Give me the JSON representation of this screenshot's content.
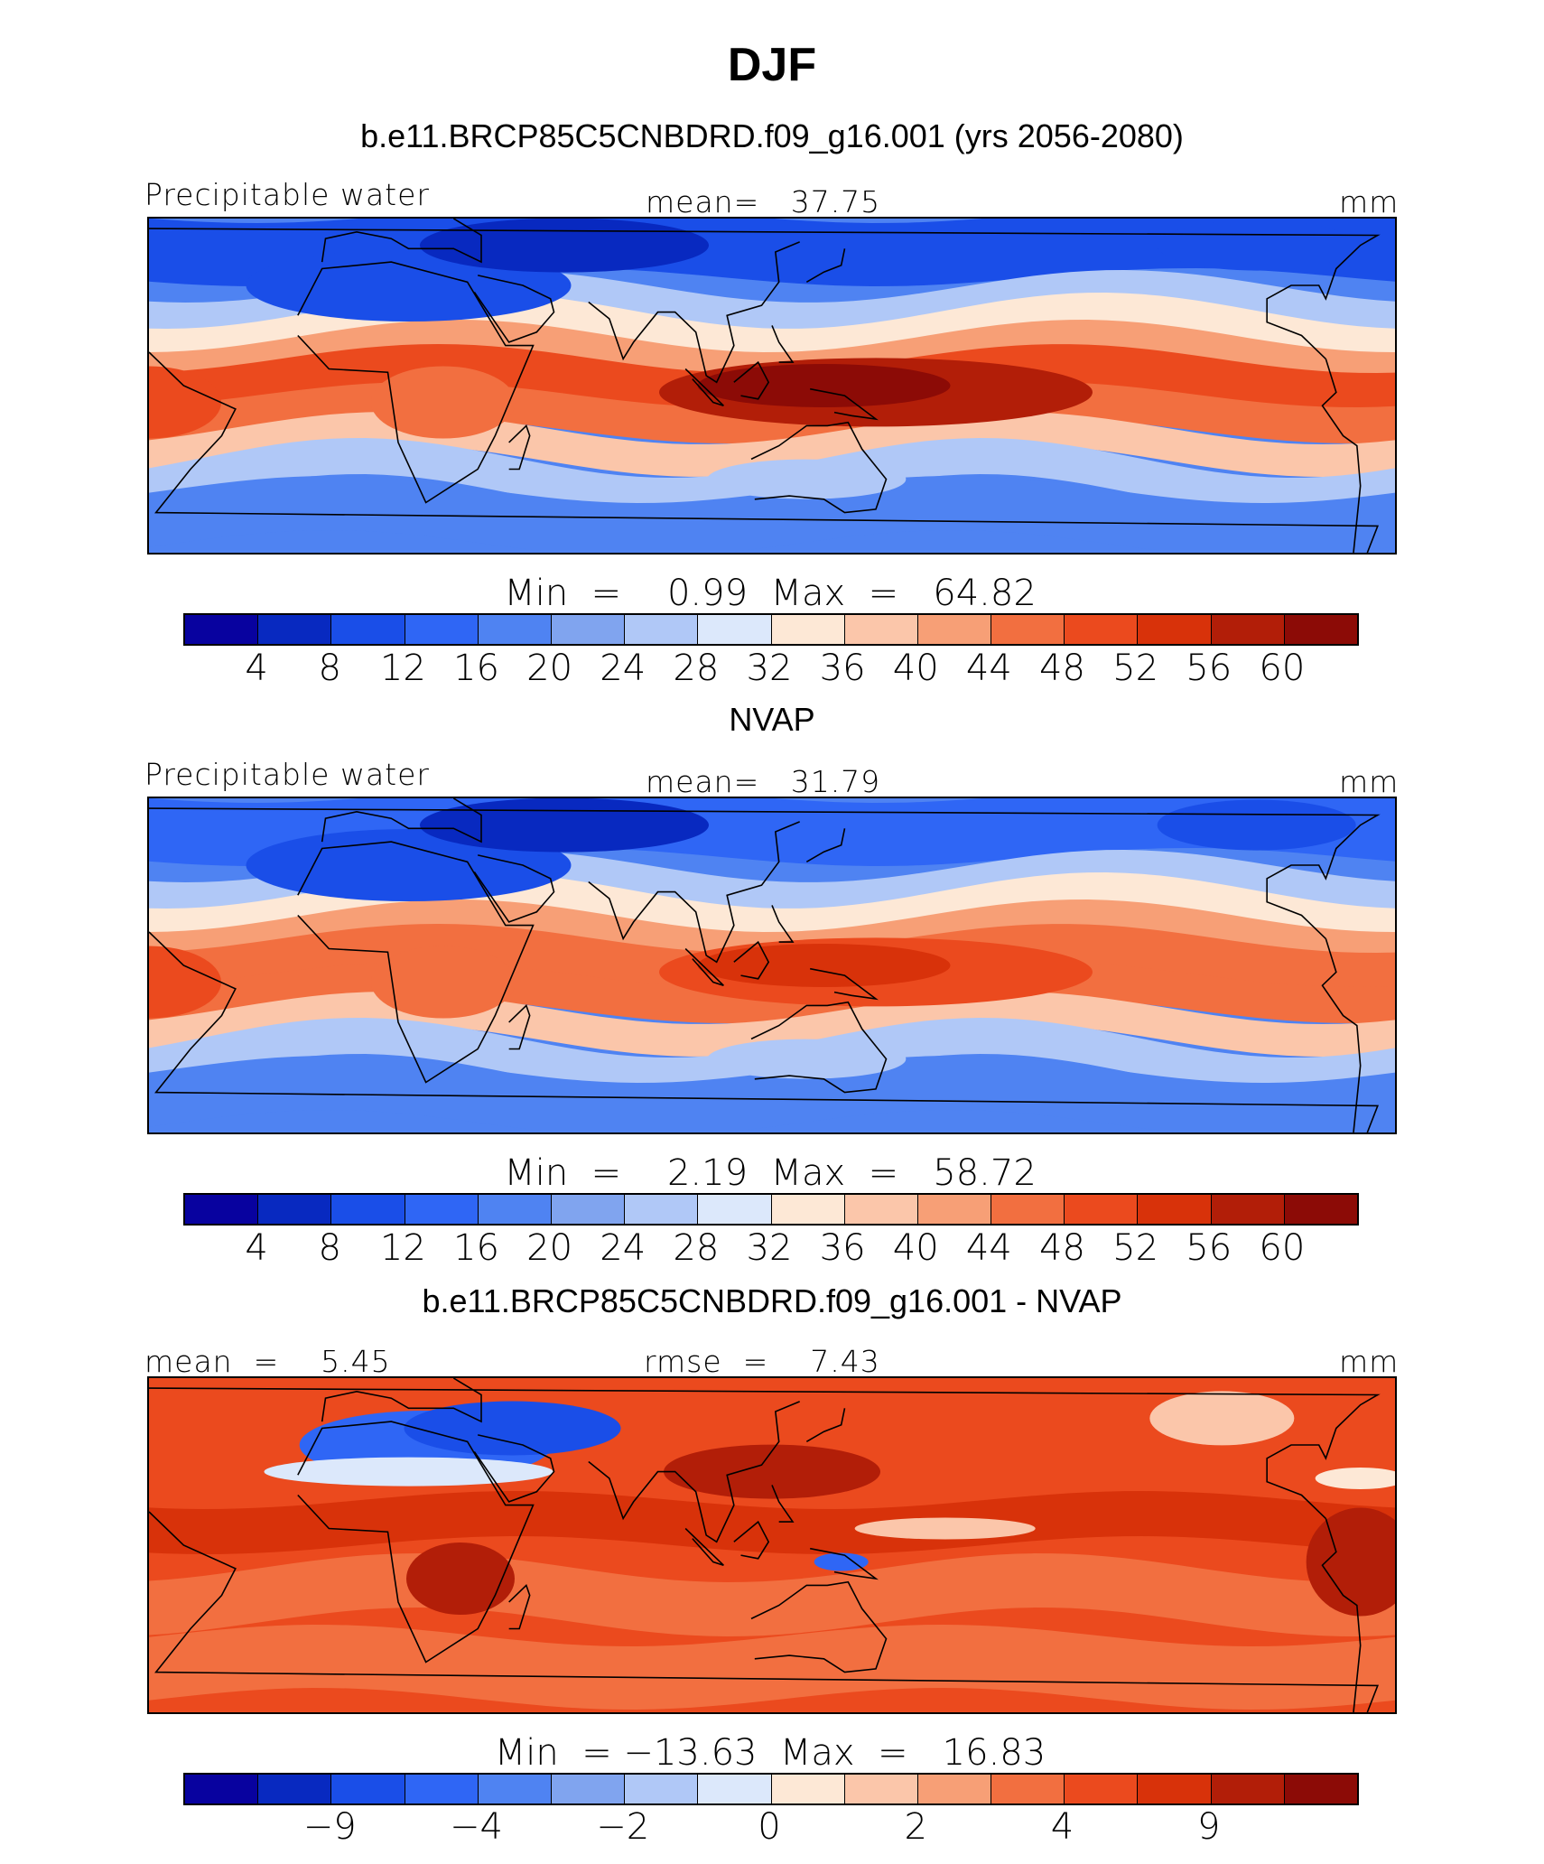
{
  "title": "DJF",
  "panels": [
    {
      "heading": "b.e11.BRCP85C5CNBDRD.f09_g16.001 (yrs 2056-2080)",
      "left_label": "Precipitable water",
      "center_label": "mean=   37.75",
      "unit": "mm",
      "minmax": "Min  =    0.99  Max  =   64.82",
      "ticks": [
        "4",
        "8",
        "12",
        "16",
        "20",
        "24",
        "28",
        "32",
        "36",
        "40",
        "44",
        "48",
        "52",
        "56",
        "60"
      ],
      "variant": "model"
    },
    {
      "heading": "NVAP",
      "left_label": "Precipitable water",
      "center_label": "mean=   31.79",
      "unit": "mm",
      "minmax": "Min  =    2.19  Max  =   58.72",
      "ticks": [
        "4",
        "8",
        "12",
        "16",
        "20",
        "24",
        "28",
        "32",
        "36",
        "40",
        "44",
        "48",
        "52",
        "56",
        "60"
      ],
      "variant": "obs"
    },
    {
      "heading": "b.e11.BRCP85C5CNBDRD.f09_g16.001 - NVAP",
      "left_label": "mean  =    5.45",
      "center_label": "rmse  =    7.43",
      "unit": "mm",
      "minmax": "Min  = −13.63  Max  =   16.83",
      "ticks": [
        "",
        "−9",
        "",
        "−4",
        "",
        "−2",
        "",
        "0",
        "",
        "2",
        "",
        "4",
        "",
        "9",
        ""
      ],
      "variant": "diff"
    }
  ],
  "colors": [
    "#08029f",
    "#0829c0",
    "#1a4ee8",
    "#2f66f5",
    "#4f83f2",
    "#80a4ef",
    "#b0c8f7",
    "#dce8fb",
    "#fde8d6",
    "#fbc6aa",
    "#f79f76",
    "#f26f40",
    "#eb4a1e",
    "#d8320a",
    "#b21e08",
    "#8c0b06"
  ]
}
